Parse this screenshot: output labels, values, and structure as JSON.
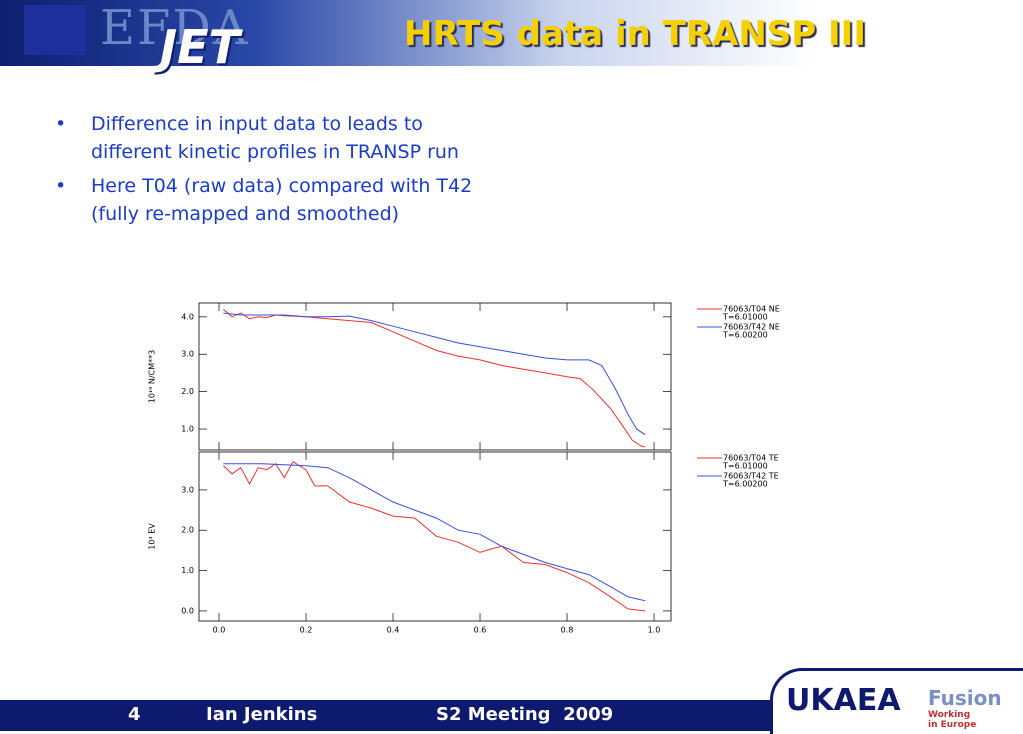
{
  "header": {
    "title": "HRTS data in TRANSP III",
    "logo_top": "EFDA",
    "logo_bottom": "JET"
  },
  "bullets": [
    "Difference in input data to leads to different kinetic profiles in TRANSP run",
    "Here T04 (raw data) compared with T42 (fully re-mapped and smoothed)"
  ],
  "footer": {
    "page": "4",
    "author": "Ian Jenkins",
    "event": "S2 Meeting  2009",
    "logo_left": "UKAEA",
    "logo_right": "Fusion",
    "logo_right_sub": "Working in Europe"
  },
  "chart_data": [
    {
      "type": "line",
      "ylabel": "10¹⁹  N/CM**3",
      "xlim": [
        -0.046,
        1.039
      ],
      "ylim": [
        0.44,
        4.37
      ],
      "yticks": [
        {
          "value": 1,
          "label": "1.0"
        },
        {
          "value": 2,
          "label": "2.0"
        },
        {
          "value": 3,
          "label": "3.0"
        },
        {
          "value": 4,
          "label": "4.0"
        }
      ],
      "series": [
        {
          "name": "76063/T04 NE",
          "time_label": "T=6.01000",
          "color": "#e8342c",
          "x": [
            0.01,
            0.03,
            0.05,
            0.07,
            0.09,
            0.11,
            0.13,
            0.15,
            0.2,
            0.25,
            0.3,
            0.35,
            0.4,
            0.45,
            0.5,
            0.55,
            0.6,
            0.65,
            0.7,
            0.75,
            0.8,
            0.83,
            0.86,
            0.9,
            0.93,
            0.95,
            0.97,
            0.98
          ],
          "values": [
            4.2,
            4.0,
            4.1,
            3.95,
            4.0,
            3.98,
            4.05,
            4.03,
            4.0,
            3.95,
            3.9,
            3.85,
            3.6,
            3.35,
            3.1,
            2.95,
            2.85,
            2.7,
            2.6,
            2.5,
            2.4,
            2.35,
            2.05,
            1.55,
            1.05,
            0.7,
            0.55,
            0.52
          ]
        },
        {
          "name": "76063/T42 NE",
          "time_label": "T=6.00200",
          "color": "#3b4fd8",
          "x": [
            0.01,
            0.05,
            0.1,
            0.15,
            0.2,
            0.25,
            0.3,
            0.35,
            0.4,
            0.45,
            0.5,
            0.55,
            0.6,
            0.65,
            0.7,
            0.75,
            0.8,
            0.85,
            0.88,
            0.91,
            0.94,
            0.96,
            0.98
          ],
          "values": [
            4.1,
            4.05,
            4.05,
            4.05,
            4.0,
            4.0,
            4.02,
            3.9,
            3.75,
            3.6,
            3.45,
            3.3,
            3.2,
            3.1,
            3.0,
            2.9,
            2.85,
            2.85,
            2.7,
            2.1,
            1.4,
            1.0,
            0.85
          ]
        }
      ]
    },
    {
      "type": "line",
      "ylabel": "10³  EV",
      "xlim": [
        -0.046,
        1.039
      ],
      "ylim": [
        -0.25,
        3.94
      ],
      "xticks": [
        {
          "value": 0,
          "label": "0.0"
        },
        {
          "value": 0.2,
          "label": "0.2"
        },
        {
          "value": 0.4,
          "label": "0.4"
        },
        {
          "value": 0.6,
          "label": "0.6"
        },
        {
          "value": 0.8,
          "label": "0.8"
        },
        {
          "value": 1,
          "label": "1.0"
        }
      ],
      "yticks": [
        {
          "value": 0,
          "label": "0.0"
        },
        {
          "value": 1,
          "label": "1.0"
        },
        {
          "value": 2,
          "label": "2.0"
        },
        {
          "value": 3,
          "label": "3.0"
        }
      ],
      "series": [
        {
          "name": "76063/T04 TE",
          "time_label": "T=6.01000",
          "color": "#e8342c",
          "x": [
            0.01,
            0.03,
            0.05,
            0.07,
            0.09,
            0.11,
            0.13,
            0.15,
            0.17,
            0.2,
            0.22,
            0.25,
            0.3,
            0.35,
            0.4,
            0.45,
            0.5,
            0.55,
            0.6,
            0.63,
            0.65,
            0.7,
            0.75,
            0.8,
            0.85,
            0.9,
            0.94,
            0.98
          ],
          "values": [
            3.6,
            3.4,
            3.55,
            3.15,
            3.55,
            3.5,
            3.65,
            3.3,
            3.7,
            3.5,
            3.1,
            3.1,
            2.7,
            2.55,
            2.35,
            2.3,
            1.85,
            1.7,
            1.45,
            1.55,
            1.6,
            1.2,
            1.15,
            0.95,
            0.7,
            0.35,
            0.05,
            0.0
          ]
        },
        {
          "name": "76063/T42 TE",
          "time_label": "T=6.00200",
          "color": "#3b4fd8",
          "x": [
            0.01,
            0.1,
            0.2,
            0.25,
            0.3,
            0.35,
            0.4,
            0.45,
            0.5,
            0.55,
            0.6,
            0.65,
            0.7,
            0.75,
            0.8,
            0.85,
            0.9,
            0.94,
            0.98
          ],
          "values": [
            3.65,
            3.65,
            3.6,
            3.55,
            3.3,
            3.0,
            2.7,
            2.5,
            2.3,
            2.0,
            1.9,
            1.6,
            1.4,
            1.2,
            1.05,
            0.9,
            0.6,
            0.35,
            0.25
          ]
        }
      ]
    }
  ]
}
